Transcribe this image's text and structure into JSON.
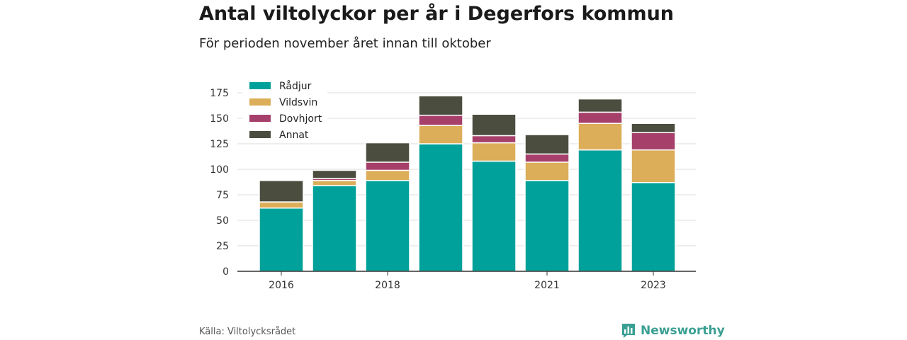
{
  "title": "Antal viltolyckor per år i Degerfors kommun",
  "subtitle": "För perioden november året innan till oktober",
  "source": "Källa: Viltolycksrådet",
  "brand": "Newsworthy",
  "chart_data": {
    "type": "bar",
    "stacked": true,
    "x": [
      2016,
      2017,
      2018,
      2019,
      2020,
      2021,
      2022,
      2023
    ],
    "x_tick_labels": [
      "2016",
      "",
      "2018",
      "",
      "",
      "2021",
      "",
      "2023"
    ],
    "y_ticks": [
      0,
      25,
      50,
      75,
      100,
      125,
      150,
      175
    ],
    "ylim": [
      0,
      180
    ],
    "grid": true,
    "legend_position": "top-left",
    "series": [
      {
        "name": "Rådjur",
        "color": "#00a19a",
        "values": [
          62,
          84,
          89,
          125,
          108,
          89,
          119,
          87
        ]
      },
      {
        "name": "Vildsvin",
        "color": "#dcae5a",
        "values": [
          6,
          5,
          10,
          18,
          18,
          18,
          26,
          32
        ]
      },
      {
        "name": "Dovhjort",
        "color": "#a6406a",
        "values": [
          0,
          2,
          8,
          10,
          7,
          8,
          11,
          17
        ]
      },
      {
        "name": "Annat",
        "color": "#4b4e3f",
        "values": [
          21,
          8,
          19,
          19,
          21,
          19,
          13,
          9
        ]
      }
    ]
  }
}
